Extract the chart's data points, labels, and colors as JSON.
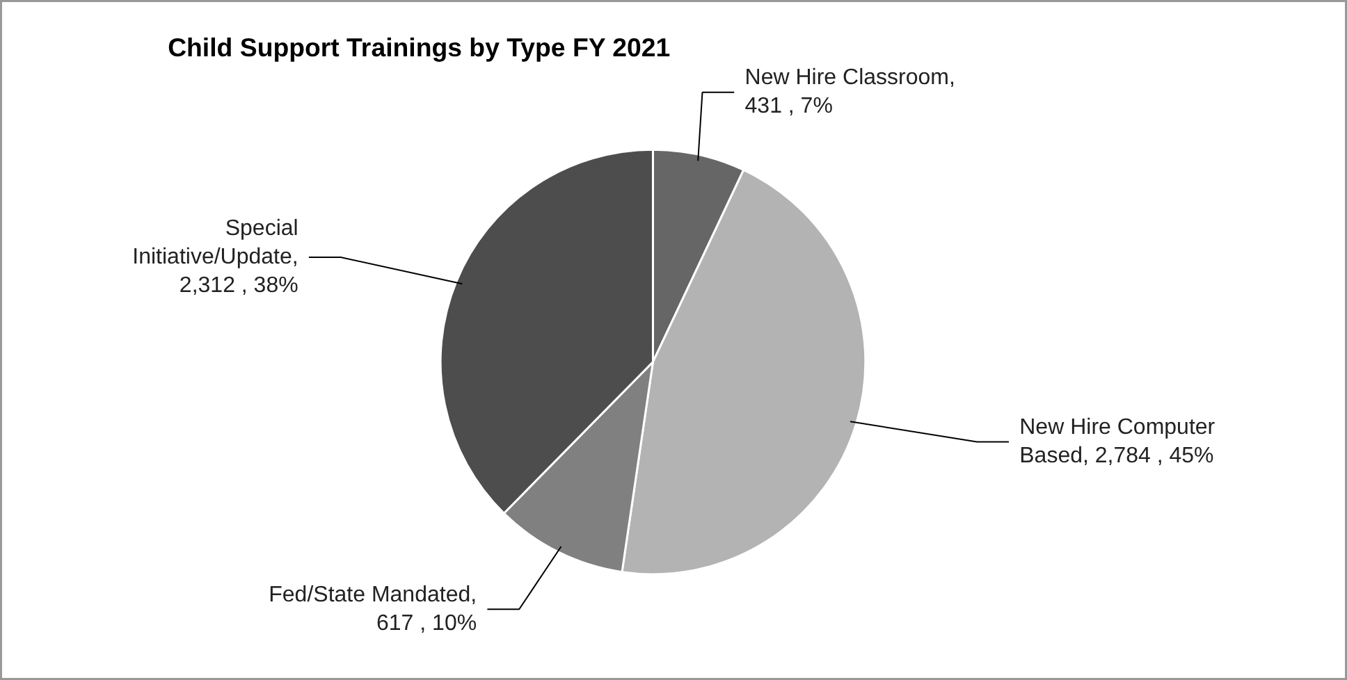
{
  "chart_data": {
    "type": "pie",
    "title": "Child Support Trainings by Type FY 2021",
    "categories": [
      "New Hire Classroom",
      "New Hire Computer Based",
      "Fed/State Mandated",
      "Special Initiative/Update"
    ],
    "values": [
      431,
      2784,
      617,
      2312
    ],
    "value_labels": [
      ", 431 , 7%",
      ", 2,784 , 45%",
      ", 617 , 10%",
      ", 2,312 , 38%"
    ],
    "colors": [
      "#666666",
      "#b3b3b3",
      "#808080",
      "#4d4d4d"
    ]
  }
}
